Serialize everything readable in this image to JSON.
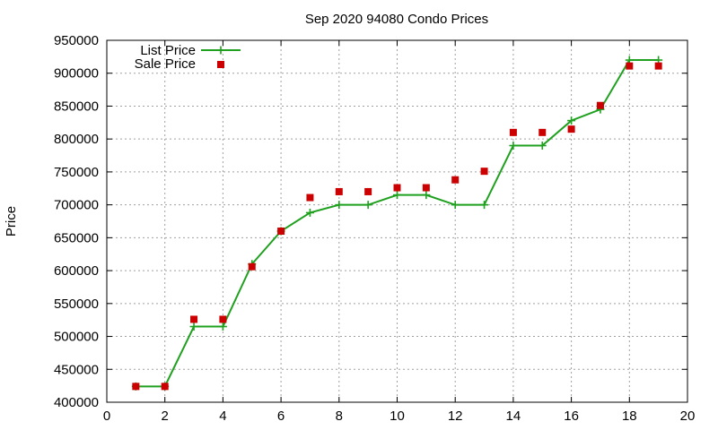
{
  "chart_data": {
    "type": "line",
    "title": "Sep 2020 94080 Condo Prices",
    "xlabel": "",
    "ylabel": "Price",
    "xlim": [
      0,
      20
    ],
    "ylim": [
      400000,
      950000
    ],
    "x_ticks": [
      0,
      2,
      4,
      6,
      8,
      10,
      12,
      14,
      16,
      18,
      20
    ],
    "y_ticks": [
      400000,
      450000,
      500000,
      550000,
      600000,
      650000,
      700000,
      750000,
      800000,
      850000,
      900000,
      950000
    ],
    "grid": true,
    "legend_position": "top-left",
    "series": [
      {
        "name": "List Price",
        "style": "line-with-plus-markers",
        "color": "#1fa01f",
        "x": [
          1,
          2,
          3,
          4,
          5,
          6,
          7,
          8,
          9,
          10,
          11,
          12,
          13,
          14,
          15,
          16,
          17,
          18,
          19
        ],
        "y": [
          424000,
          424000,
          515000,
          515000,
          610000,
          660000,
          688000,
          700000,
          700000,
          715000,
          715000,
          700000,
          700000,
          790000,
          790000,
          828000,
          845000,
          920000,
          920000
        ]
      },
      {
        "name": "Sale Price",
        "style": "square-markers",
        "color": "#cc0000",
        "x": [
          1,
          2,
          3,
          4,
          5,
          6,
          7,
          8,
          9,
          10,
          11,
          12,
          13,
          14,
          15,
          16,
          17,
          18,
          19
        ],
        "y": [
          424000,
          424000,
          526000,
          526000,
          606000,
          660000,
          711000,
          720000,
          720000,
          726000,
          726000,
          738000,
          751000,
          810000,
          810000,
          815000,
          851000,
          911000,
          911000
        ]
      }
    ]
  }
}
